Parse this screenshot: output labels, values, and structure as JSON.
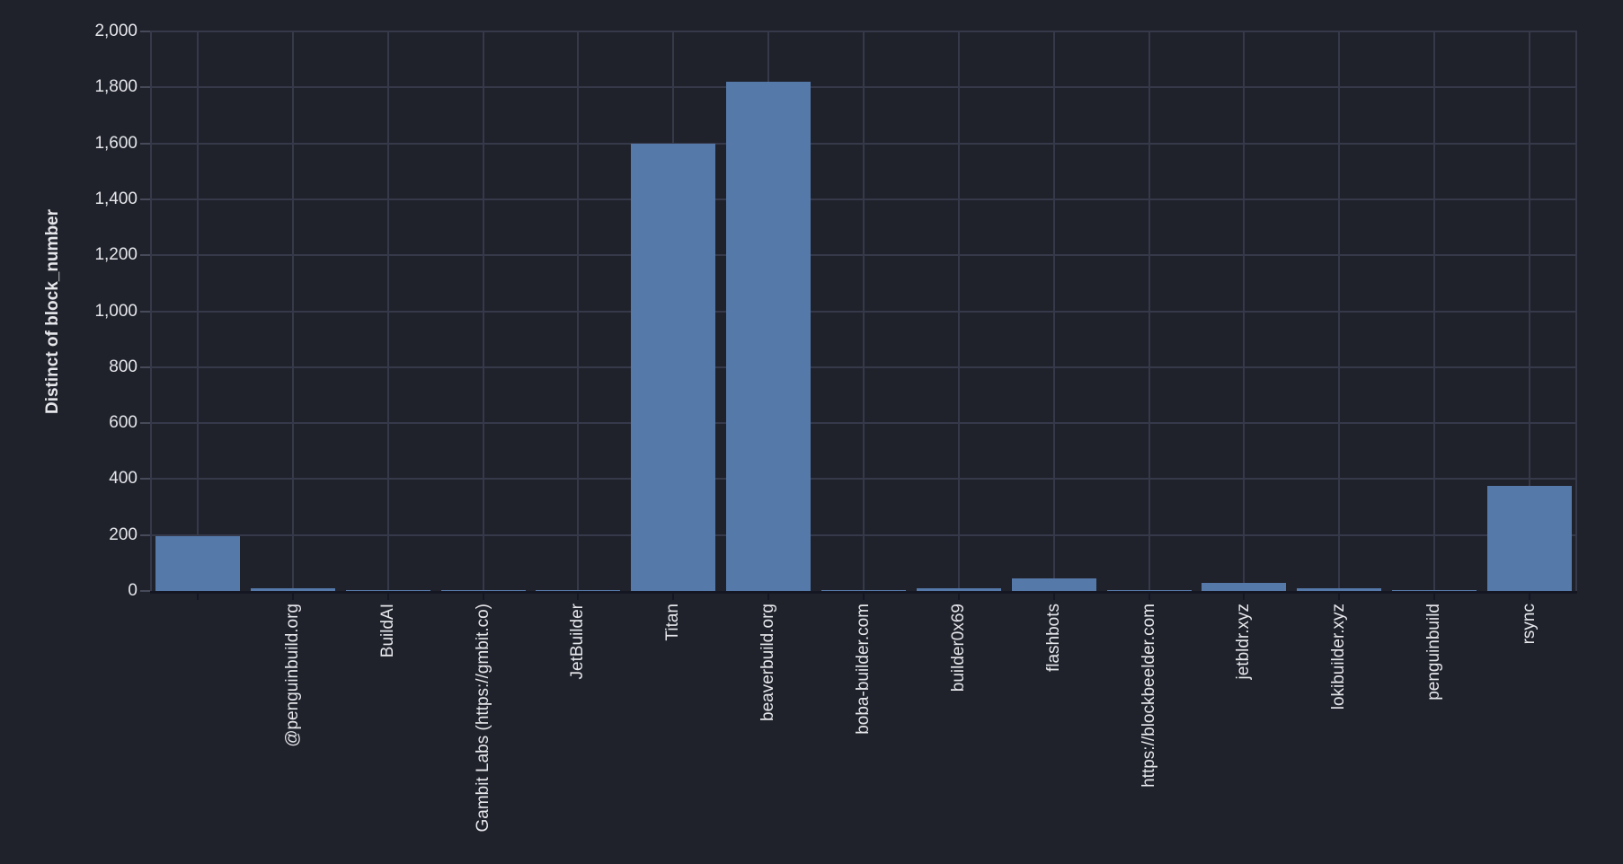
{
  "chart": {
    "y_tick_labels": [
      "0",
      "200",
      "400",
      "600",
      "800",
      "1,000",
      "1,200",
      "1,400",
      "1,600",
      "1,800",
      "2,000"
    ]
  },
  "colors": {
    "background": "#1f212b",
    "bar": "#5579a9",
    "gridline": "#363949",
    "axis_text": "#e6e7eb",
    "axis_line": "#141722",
    "y_tick_mark": "#474b59"
  },
  "chart_data": {
    "type": "bar",
    "title": "",
    "xlabel": "",
    "ylabel": "Distinct of block_number",
    "categories": [
      "",
      "@penguinbuild.org",
      "BuildAI",
      "Gambit Labs (https://gmbit.co)",
      "JetBuilder",
      "Titan",
      "beaverbuild.org",
      "boba-builder.com",
      "builder0x69",
      "flashbots",
      "https://blockbeelder.com",
      "jetbldr.xyz",
      "lokibuilder.xyz",
      "penguinbuild",
      "rsync"
    ],
    "values": [
      195,
      10,
      3,
      3,
      3,
      1600,
      1820,
      3,
      10,
      45,
      3,
      30,
      10,
      3,
      375
    ],
    "ylim": [
      0,
      2000
    ],
    "y_tick_step": 200,
    "grid": true,
    "legend": "none",
    "x_gridlines_at_category_centers": true
  }
}
